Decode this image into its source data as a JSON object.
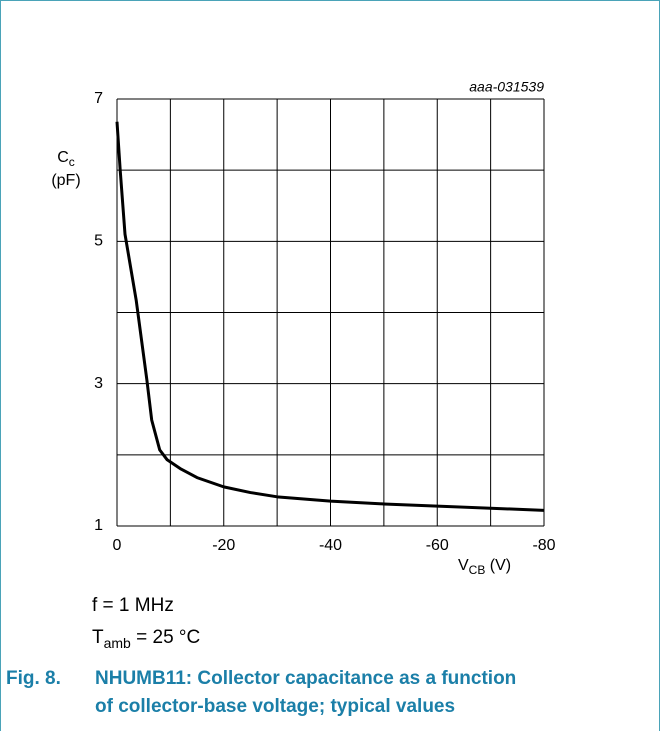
{
  "chart_data": {
    "type": "line",
    "code": "aaa-031539",
    "y_label": {
      "symbol": "C",
      "subscript": "c",
      "unit": "(pF)"
    },
    "x_label": {
      "symbol": "V",
      "subscript": "CB",
      "unit": "(V)"
    },
    "x": [
      0,
      -0.6,
      -1.5,
      -3.6,
      -5.6,
      -6.5,
      -8,
      -9.4,
      -12,
      -15,
      -20,
      -25,
      -30,
      -40,
      -50,
      -60,
      -70,
      -80
    ],
    "values": [
      6.68,
      6.0,
      5.1,
      4.17,
      3.05,
      2.49,
      2.07,
      1.93,
      1.8,
      1.68,
      1.55,
      1.47,
      1.41,
      1.35,
      1.31,
      1.28,
      1.25,
      1.22
    ],
    "color": "#000000",
    "xlim": [
      0,
      -80
    ],
    "ylim": [
      1,
      7
    ],
    "xticks": [
      0,
      -20,
      -40,
      -60,
      -80
    ],
    "yticks": [
      1,
      3,
      5,
      7
    ],
    "xgrid": [
      0,
      -10,
      -20,
      -30,
      -40,
      -50,
      -60,
      -70,
      -80
    ],
    "ygrid": [
      1,
      2,
      3,
      4,
      5,
      6,
      7
    ],
    "conditions": [
      {
        "text": "f = 1 MHz"
      },
      {
        "symbol": "T",
        "subscript": "amb",
        "text": " = 25 °C"
      }
    ],
    "caption_number": "Fig. 8.",
    "caption": [
      "NHUMB11: Collector capacitance as a function",
      "of collector-base voltage; typical values"
    ]
  }
}
